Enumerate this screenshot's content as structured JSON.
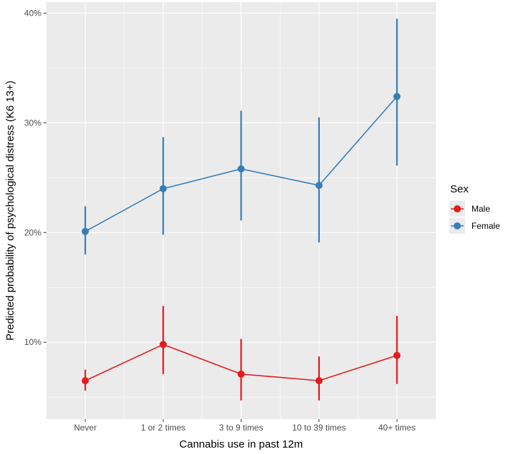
{
  "chart_data": {
    "type": "line",
    "xlabel": "Cannabis use in past 12m",
    "ylabel": "Predicted probability of psychological distress (K6 13+)",
    "categories": [
      "Never",
      "1 or 2 times",
      "3 to 9 times",
      "10 to 39 times",
      "40+ times"
    ],
    "y_ticks": [
      {
        "value": 0.1,
        "label": "10%"
      },
      {
        "value": 0.2,
        "label": "20%"
      },
      {
        "value": 0.3,
        "label": "30%"
      },
      {
        "value": 0.4,
        "label": "40%"
      }
    ],
    "ylim": [
      0.03,
      0.41
    ],
    "grid": true,
    "legend_position": "right",
    "legend_title": "Sex",
    "error_bars": true,
    "series": [
      {
        "name": "Male",
        "color": "#e41a1c",
        "values": [
          0.065,
          0.098,
          0.071,
          0.065,
          0.088
        ],
        "lower": [
          0.056,
          0.071,
          0.047,
          0.047,
          0.062
        ],
        "upper": [
          0.075,
          0.133,
          0.103,
          0.087,
          0.124
        ]
      },
      {
        "name": "Female",
        "color": "#377eb8",
        "values": [
          0.201,
          0.24,
          0.258,
          0.243,
          0.324
        ],
        "lower": [
          0.18,
          0.198,
          0.211,
          0.191,
          0.261
        ],
        "upper": [
          0.224,
          0.287,
          0.311,
          0.305,
          0.395
        ]
      }
    ]
  }
}
